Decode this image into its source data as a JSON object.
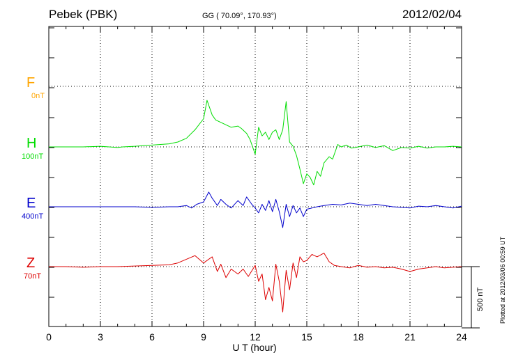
{
  "header": {
    "station": "Pebek (PBK)",
    "coords": "GG ( 70.09°, 170.93°)",
    "date": "2012/02/04"
  },
  "side_note": "Plotted at 2012/03/06 00:59 UT",
  "scale_bar_label": "500 nT",
  "colors": {
    "F": "#ffa500",
    "H": "#00dd00",
    "E": "#0000cc",
    "Z": "#dd0000"
  },
  "chart_data": {
    "type": "line",
    "xlabel": "U T (hour)",
    "xlim": [
      0,
      24
    ],
    "xticks": [
      0,
      3,
      6,
      9,
      12,
      15,
      18,
      21,
      24
    ],
    "grid": true,
    "units": "nT",
    "scale_bar_nT": 500,
    "channels": [
      {
        "name": "F",
        "scale": "0nT",
        "values": []
      },
      {
        "name": "H",
        "scale": "100nT",
        "x": [
          0,
          1,
          2,
          3,
          4,
          4.3,
          5,
          6,
          6.5,
          7,
          7.5,
          8,
          8.5,
          9,
          9.2,
          9.5,
          9.7,
          10,
          10.3,
          10.6,
          11,
          11.2,
          11.5,
          11.7,
          12,
          12.2,
          12.4,
          12.6,
          12.8,
          13,
          13.2,
          13.4,
          13.6,
          13.8,
          14,
          14.2,
          14.4,
          14.6,
          14.8,
          15,
          15.2,
          15.4,
          15.6,
          15.8,
          16,
          16.3,
          16.5,
          16.8,
          17,
          17.3,
          17.6,
          18,
          18.5,
          19,
          19.5,
          20,
          20.5,
          21,
          21.5,
          22,
          22.5,
          23,
          23.5,
          24
        ],
        "values": [
          0,
          0,
          0,
          5,
          -5,
          0,
          5,
          15,
          20,
          25,
          40,
          70,
          140,
          230,
          380,
          260,
          220,
          200,
          180,
          160,
          170,
          150,
          110,
          60,
          -60,
          160,
          90,
          120,
          60,
          120,
          140,
          60,
          140,
          370,
          40,
          5,
          -70,
          -180,
          -300,
          -220,
          -250,
          -310,
          -200,
          -240,
          -130,
          -80,
          -100,
          20,
          0,
          15,
          -10,
          0,
          15,
          -5,
          10,
          -30,
          -5,
          -10,
          5,
          -10,
          0,
          0,
          5,
          0
        ]
      },
      {
        "name": "E",
        "scale": "400nT",
        "x": [
          0,
          1,
          2,
          3,
          4,
          5,
          6,
          7,
          7.5,
          8,
          8.3,
          8.6,
          9,
          9.3,
          9.5,
          9.8,
          10,
          10.3,
          10.6,
          11,
          11.3,
          11.5,
          11.8,
          12,
          12.2,
          12.4,
          12.6,
          12.8,
          13,
          13.2,
          13.4,
          13.6,
          13.8,
          14,
          14.2,
          14.4,
          14.6,
          14.8,
          15,
          15.3,
          15.6,
          16,
          16.5,
          17,
          17.5,
          18,
          18.5,
          19,
          19.5,
          20,
          21,
          21.5,
          22,
          22.5,
          23,
          23.5,
          24
        ],
        "values": [
          0,
          0,
          0,
          0,
          0,
          0,
          -5,
          0,
          0,
          10,
          -10,
          20,
          40,
          120,
          70,
          10,
          60,
          20,
          -10,
          50,
          10,
          80,
          20,
          -10,
          -50,
          20,
          -30,
          50,
          -40,
          60,
          -40,
          -170,
          20,
          -80,
          10,
          -50,
          -10,
          -80,
          -20,
          -10,
          0,
          10,
          20,
          15,
          30,
          20,
          10,
          20,
          10,
          0,
          -10,
          5,
          0,
          10,
          0,
          -10,
          5
        ]
      },
      {
        "name": "Z",
        "scale": "70nT",
        "x": [
          0,
          1,
          2,
          3,
          4,
          5,
          6,
          7,
          7.5,
          8,
          8.5,
          9,
          9.5,
          9.8,
          10,
          10.3,
          10.6,
          11,
          11.3,
          11.6,
          12,
          12.2,
          12.4,
          12.6,
          12.8,
          13,
          13.2,
          13.4,
          13.6,
          13.8,
          14,
          14.2,
          14.4,
          14.6,
          14.8,
          15,
          15.3,
          15.6,
          16,
          16.3,
          16.6,
          17,
          17.5,
          18,
          18.5,
          19,
          19.5,
          20,
          20.5,
          21,
          21.5,
          22,
          22.5,
          23,
          23.5,
          24
        ],
        "values": [
          0,
          0,
          -5,
          0,
          0,
          5,
          10,
          15,
          30,
          60,
          90,
          30,
          80,
          -40,
          20,
          -90,
          -20,
          -60,
          -20,
          -80,
          10,
          -120,
          -60,
          -270,
          -170,
          -280,
          20,
          -120,
          -370,
          -30,
          -190,
          30,
          -90,
          80,
          40,
          50,
          100,
          80,
          110,
          40,
          10,
          0,
          -10,
          10,
          -5,
          0,
          -10,
          -5,
          -20,
          -40,
          -20,
          -10,
          0,
          -10,
          -5,
          0
        ]
      }
    ]
  }
}
